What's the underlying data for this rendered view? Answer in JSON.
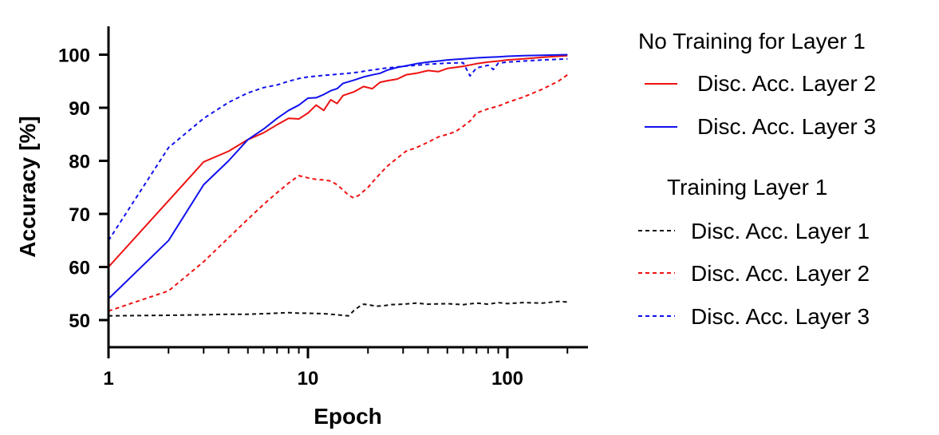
{
  "chart_data": {
    "type": "line",
    "xscale": "log",
    "xlabel": "Epoch",
    "ylabel": "Accuracy [%]",
    "xlim": [
      1,
      250
    ],
    "ylim": [
      44,
      105
    ],
    "xticks": [
      {
        "value": 1,
        "label": "1"
      },
      {
        "value": 10,
        "label": "10"
      },
      {
        "value": 100,
        "label": "100"
      }
    ],
    "yticks": [
      {
        "value": 50,
        "label": "50"
      },
      {
        "value": 60,
        "label": "60"
      },
      {
        "value": 70,
        "label": "70"
      },
      {
        "value": 80,
        "label": "80"
      },
      {
        "value": 90,
        "label": "90"
      },
      {
        "value": 100,
        "label": "100"
      }
    ],
    "legend": {
      "placement": "right",
      "groups": [
        {
          "title": "No Training for Layer 1",
          "entries": [
            {
              "series": "nt2",
              "label": "Disc. Acc. Layer 2"
            },
            {
              "series": "nt3",
              "label": "Disc. Acc. Layer 3"
            }
          ]
        },
        {
          "title": "Training Layer 1",
          "entries": [
            {
              "series": "t1",
              "label": "Disc. Acc. Layer 1"
            },
            {
              "series": "t2",
              "label": "Disc. Acc. Layer 2"
            },
            {
              "series": "t3",
              "label": "Disc. Acc. Layer 3"
            }
          ]
        }
      ]
    },
    "series": [
      {
        "id": "nt2",
        "name": "No Training for Layer 1 - Disc. Acc. Layer 2",
        "color": "#ee1111",
        "dash": "solid",
        "x": [
          1,
          2,
          3,
          4,
          5,
          6,
          7,
          8,
          9,
          10,
          11,
          12,
          13,
          14,
          15,
          17,
          19,
          21,
          23,
          25,
          28,
          31,
          35,
          40,
          45,
          50,
          60,
          70,
          80,
          90,
          100,
          120,
          150,
          200
        ],
        "y": [
          60,
          72.5,
          79.8,
          81.8,
          84.0,
          85.3,
          86.8,
          88.0,
          87.9,
          89.0,
          90.5,
          89.5,
          91.5,
          90.8,
          92.3,
          93.0,
          94.0,
          93.6,
          94.8,
          95.1,
          95.4,
          96.2,
          96.5,
          97.0,
          96.8,
          97.4,
          97.8,
          98.3,
          98.6,
          98.8,
          99.0,
          99.2,
          99.5,
          99.8
        ]
      },
      {
        "id": "nt3",
        "name": "No Training for Layer 1 - Disc. Acc. Layer 3",
        "color": "#1111ee",
        "dash": "solid",
        "x": [
          1,
          2,
          3,
          4,
          5,
          6,
          7,
          8,
          9,
          10,
          11,
          12,
          13,
          14,
          15,
          17,
          19,
          21,
          23,
          25,
          28,
          31,
          35,
          40,
          45,
          50,
          60,
          70,
          80,
          90,
          100,
          120,
          150,
          200
        ],
        "y": [
          54,
          65,
          75.5,
          80.0,
          84.0,
          86.0,
          88.0,
          89.5,
          90.5,
          91.8,
          91.9,
          92.5,
          93.2,
          93.6,
          94.6,
          95.2,
          95.8,
          96.2,
          96.5,
          97.1,
          97.6,
          97.9,
          98.3,
          98.6,
          98.8,
          99.0,
          99.2,
          99.4,
          99.5,
          99.6,
          99.7,
          99.8,
          99.9,
          100
        ]
      },
      {
        "id": "t1",
        "name": "Training Layer 1 - Disc. Acc. Layer 1",
        "color": "#111111",
        "dash": "short",
        "x": [
          1,
          2,
          3,
          4,
          5,
          6,
          7,
          8,
          9,
          10,
          12,
          14,
          16,
          17,
          18,
          19,
          20,
          22,
          24,
          26,
          30,
          35,
          40,
          50,
          60,
          70,
          80,
          90,
          100,
          120,
          150,
          180,
          200
        ],
        "y": [
          50.8,
          50.9,
          51.0,
          51.1,
          51.1,
          51.2,
          51.3,
          51.4,
          51.3,
          51.3,
          51.2,
          51.0,
          50.8,
          51.8,
          52.5,
          53.0,
          52.9,
          52.6,
          52.7,
          52.9,
          53.0,
          53.2,
          53.0,
          53.1,
          52.9,
          53.2,
          53.0,
          53.3,
          53.1,
          53.3,
          53.2,
          53.5,
          53.4
        ]
      },
      {
        "id": "t2",
        "name": "Training Layer 1 - Disc. Acc. Layer 2",
        "color": "#ee1111",
        "dash": "short",
        "x": [
          1,
          2,
          3,
          4,
          5,
          6,
          7,
          8,
          9,
          10,
          11,
          12,
          13,
          14,
          15,
          16,
          17,
          18,
          20,
          22,
          25,
          28,
          31,
          35,
          40,
          45,
          50,
          55,
          60,
          65,
          70,
          80,
          90,
          100,
          120,
          150,
          180,
          200
        ],
        "y": [
          51.7,
          55.5,
          61.0,
          65.5,
          69.0,
          71.8,
          74.0,
          75.8,
          77.2,
          76.8,
          76.5,
          76.4,
          76.2,
          75.5,
          74.5,
          73.5,
          73.0,
          73.5,
          75.0,
          76.8,
          79.0,
          80.5,
          81.8,
          82.5,
          83.5,
          84.5,
          85.0,
          85.5,
          86.5,
          87.5,
          89.0,
          89.8,
          90.3,
          91.0,
          92.0,
          93.5,
          95.0,
          96.2
        ]
      },
      {
        "id": "t3",
        "name": "Training Layer 1 - Disc. Acc. Layer 3",
        "color": "#1111ee",
        "dash": "short",
        "x": [
          1,
          2,
          3,
          4,
          5,
          6,
          7,
          8,
          9,
          10,
          12,
          14,
          16,
          18,
          20,
          25,
          30,
          35,
          40,
          50,
          60,
          65,
          70,
          80,
          85,
          90,
          100,
          120,
          150,
          200
        ],
        "y": [
          65.0,
          82.5,
          88.0,
          91.0,
          92.8,
          93.8,
          94.3,
          95.0,
          95.5,
          95.8,
          96.1,
          96.3,
          96.5,
          96.7,
          97.0,
          97.5,
          97.8,
          98.0,
          98.2,
          98.4,
          98.5,
          96.0,
          97.5,
          98.0,
          97.2,
          98.4,
          98.6,
          98.8,
          99.0,
          99.2
        ]
      }
    ]
  }
}
